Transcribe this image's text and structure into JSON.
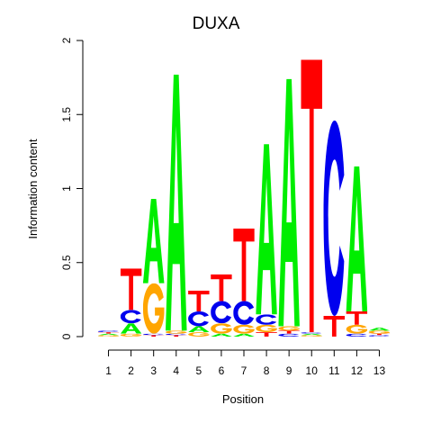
{
  "chart_data": {
    "type": "sequence-logo",
    "title": "DUXA",
    "xlabel": "Position",
    "ylabel": "Information content",
    "ylim": [
      0,
      2
    ],
    "yticks": [
      0,
      0.5,
      1,
      1.5,
      2
    ],
    "ytick_labels": [
      "0",
      "0.5",
      "1",
      "1.5",
      "2"
    ],
    "positions": [
      "1",
      "2",
      "3",
      "4",
      "5",
      "6",
      "7",
      "8",
      "9",
      "10",
      "11",
      "12",
      "13"
    ],
    "colors": {
      "A": "#00ee00",
      "C": "#0000ee",
      "G": "#ffa500",
      "T": "#ff0000"
    },
    "stacks": [
      [
        {
          "base": "G",
          "height": 0.01
        },
        {
          "base": "A",
          "height": 0.01
        },
        {
          "base": "T",
          "height": 0.01
        },
        {
          "base": "C",
          "height": 0.01
        }
      ],
      [
        {
          "base": "G",
          "height": 0.02
        },
        {
          "base": "A",
          "height": 0.07
        },
        {
          "base": "C",
          "height": 0.09
        },
        {
          "base": "T",
          "height": 0.28
        }
      ],
      [
        {
          "base": "T",
          "height": 0.01
        },
        {
          "base": "C",
          "height": 0.01
        },
        {
          "base": "G",
          "height": 0.34
        },
        {
          "base": "A",
          "height": 0.57
        }
      ],
      [
        {
          "base": "T",
          "height": 0.01
        },
        {
          "base": "C",
          "height": 0.01
        },
        {
          "base": "G",
          "height": 0.02
        },
        {
          "base": "A",
          "height": 1.73
        }
      ],
      [
        {
          "base": "G",
          "height": 0.03
        },
        {
          "base": "A",
          "height": 0.04
        },
        {
          "base": "C",
          "height": 0.1
        },
        {
          "base": "T",
          "height": 0.14
        }
      ],
      [
        {
          "base": "A",
          "height": 0.02
        },
        {
          "base": "G",
          "height": 0.07
        },
        {
          "base": "C",
          "height": 0.15
        },
        {
          "base": "T",
          "height": 0.18
        }
      ],
      [
        {
          "base": "A",
          "height": 0.02
        },
        {
          "base": "G",
          "height": 0.06
        },
        {
          "base": "C",
          "height": 0.16
        },
        {
          "base": "T",
          "height": 0.49
        }
      ],
      [
        {
          "base": "T",
          "height": 0.03
        },
        {
          "base": "G",
          "height": 0.05
        },
        {
          "base": "C",
          "height": 0.07
        },
        {
          "base": "A",
          "height": 1.15
        }
      ],
      [
        {
          "base": "C",
          "height": 0.02
        },
        {
          "base": "T",
          "height": 0.02
        },
        {
          "base": "G",
          "height": 0.03
        },
        {
          "base": "A",
          "height": 1.67
        }
      ],
      [
        {
          "base": "G",
          "height": 0.01
        },
        {
          "base": "A",
          "height": 0.01
        },
        {
          "base": "C",
          "height": 0.01
        },
        {
          "base": "T",
          "height": 1.84
        }
      ],
      [
        {
          "base": "T",
          "height": 0.14
        },
        {
          "base": "C",
          "height": 1.32
        }
      ],
      [
        {
          "base": "C",
          "height": 0.02
        },
        {
          "base": "G",
          "height": 0.06
        },
        {
          "base": "T",
          "height": 0.09
        },
        {
          "base": "A",
          "height": 0.98
        }
      ],
      [
        {
          "base": "C",
          "height": 0.01
        },
        {
          "base": "T",
          "height": 0.01
        },
        {
          "base": "G",
          "height": 0.02
        },
        {
          "base": "A",
          "height": 0.02
        }
      ]
    ]
  }
}
